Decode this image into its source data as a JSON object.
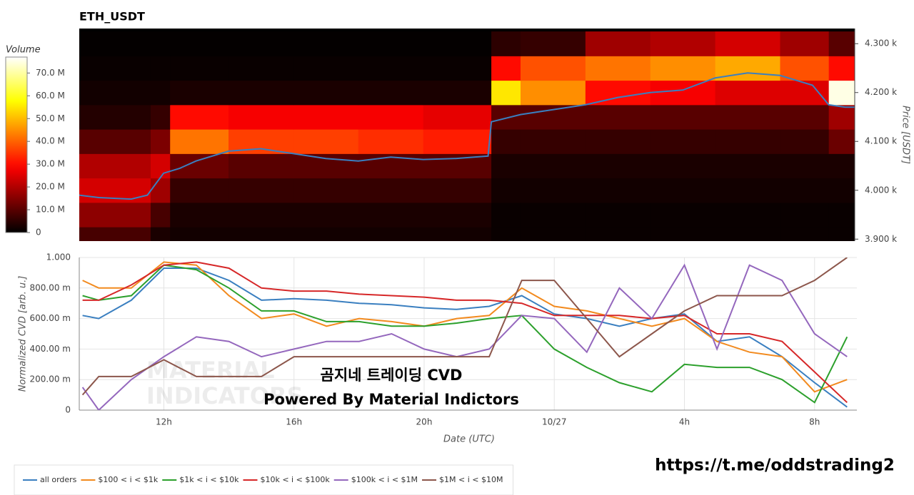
{
  "chart_data": [
    {
      "type": "heatmap",
      "title": "ETH_USDT",
      "colorbar_title": "Volume",
      "colormap": "hot",
      "clim": [
        0,
        77000000
      ],
      "cticks": [
        0,
        {
          "value": 10000000,
          "label": "10.0 M"
        },
        {
          "value": 20000000,
          "label": "20.0 M"
        },
        {
          "value": 30000000,
          "label": "30.0 M"
        },
        {
          "value": 40000000,
          "label": "40.0 M"
        },
        {
          "value": 50000000,
          "label": "50.0 M"
        },
        {
          "value": 60000000,
          "label": "60.0 M"
        },
        {
          "value": 70000000,
          "label": "70.0 M"
        }
      ],
      "xlim": [
        9.4,
        33.3
      ],
      "x_bins": [
        9.4,
        11.6,
        12.2,
        14,
        16,
        18,
        20,
        22.1,
        23,
        25,
        27,
        29,
        31,
        32.5,
        33.3
      ],
      "y_bins": [
        3875,
        3925,
        3975,
        4025,
        4075,
        4125,
        4175,
        4225,
        4275,
        4325
      ],
      "values": [
        [
          8000000,
          3000000,
          2000000,
          2000000,
          2000000,
          2000000,
          2000000,
          1000000,
          1000000,
          1000000,
          1000000,
          1000000,
          1000000,
          1000000
        ],
        [
          16000000,
          8000000,
          3000000,
          3000000,
          3000000,
          3000000,
          3000000,
          1000000,
          1000000,
          1000000,
          1000000,
          1000000,
          1000000,
          1000000
        ],
        [
          24000000,
          18000000,
          6000000,
          6000000,
          6000000,
          6000000,
          6000000,
          2000000,
          2000000,
          2000000,
          2000000,
          2000000,
          2000000,
          2000000
        ],
        [
          20000000,
          24000000,
          12000000,
          10000000,
          10000000,
          10000000,
          10000000,
          3000000,
          3000000,
          3000000,
          3000000,
          3000000,
          3000000,
          3000000
        ],
        [
          10000000,
          14000000,
          42000000,
          36000000,
          36000000,
          34000000,
          32000000,
          6000000,
          6000000,
          6000000,
          6000000,
          6000000,
          6000000,
          12000000
        ],
        [
          4000000,
          6000000,
          30000000,
          28000000,
          28000000,
          28000000,
          26000000,
          10000000,
          10000000,
          10000000,
          10000000,
          10000000,
          10000000,
          18000000
        ],
        [
          2000000,
          2000000,
          3000000,
          3000000,
          3000000,
          3000000,
          3000000,
          55000000,
          45000000,
          30000000,
          28000000,
          25000000,
          25000000,
          75000000
        ],
        [
          1000000,
          1000000,
          1000000,
          1000000,
          1000000,
          1000000,
          1000000,
          30000000,
          38000000,
          42000000,
          45000000,
          48000000,
          38000000,
          30000000
        ],
        [
          500000,
          500000,
          500000,
          500000,
          500000,
          500000,
          500000,
          5000000,
          6000000,
          18000000,
          20000000,
          24000000,
          18000000,
          10000000
        ]
      ],
      "y2lim": [
        3896,
        4331
      ],
      "y2ticks": [
        {
          "value": 3900,
          "label": "3.900 k"
        },
        {
          "value": 4000,
          "label": "4.000 k"
        },
        {
          "value": 4100,
          "label": "4.100 k"
        },
        {
          "value": 4200,
          "label": "4.200 k"
        },
        {
          "value": 4300,
          "label": "4.300 k"
        }
      ],
      "y2label": "Price [USDT]",
      "price": {
        "color": "#3a7fc0",
        "axis": "y2",
        "x": [
          9.4,
          10,
          11,
          11.5,
          12,
          12.5,
          13,
          14,
          15,
          16,
          17,
          18,
          19,
          20,
          21,
          22,
          22.1,
          23,
          24,
          25,
          26,
          27,
          28,
          29,
          30,
          31,
          32,
          32.5,
          33,
          33.3
        ],
        "values": [
          3990,
          3985,
          3982,
          3990,
          4035,
          4045,
          4060,
          4080,
          4085,
          4075,
          4065,
          4060,
          4068,
          4063,
          4065,
          4070,
          4140,
          4155,
          4165,
          4175,
          4190,
          4200,
          4205,
          4230,
          4240,
          4235,
          4215,
          4175,
          4170,
          4170
        ]
      }
    },
    {
      "type": "line",
      "xlabel": "Date (UTC)",
      "ylabel": "Normalized CVD [arb. u.]",
      "grid": true,
      "legend": "bottom-left",
      "xlim": [
        9.4,
        33.3
      ],
      "xticks": [
        {
          "value": 12,
          "label": "12h"
        },
        {
          "value": 16,
          "label": "16h"
        },
        {
          "value": 20,
          "label": "20h"
        },
        {
          "value": 24,
          "label": "10/27"
        },
        {
          "value": 28,
          "label": "4h"
        },
        {
          "value": 32,
          "label": "8h"
        }
      ],
      "ylim": [
        0,
        1
      ],
      "yticks": [
        0,
        {
          "value": 0.2,
          "label": "200.00 m"
        },
        {
          "value": 0.4,
          "label": "400.00 m"
        },
        {
          "value": 0.6,
          "label": "600.00 m"
        },
        {
          "value": 0.8,
          "label": "800.00 m"
        },
        {
          "value": 1,
          "label": "1.000"
        }
      ],
      "x": [
        9.5,
        10,
        11,
        12,
        13,
        14,
        15,
        16,
        17,
        18,
        19,
        20,
        21,
        22,
        23,
        24,
        25,
        26,
        27,
        28,
        29,
        30,
        31,
        32,
        33
      ],
      "series": [
        {
          "name": "all orders",
          "color": "#3a7fc0",
          "values": [
            0.62,
            0.6,
            0.72,
            0.93,
            0.93,
            0.85,
            0.72,
            0.73,
            0.72,
            0.7,
            0.69,
            0.67,
            0.66,
            0.68,
            0.75,
            0.63,
            0.6,
            0.55,
            0.6,
            0.63,
            0.45,
            0.48,
            0.35,
            0.18,
            0.02
          ]
        },
        {
          "name": "$100 < i < $1k",
          "color": "#f28a1e",
          "values": [
            0.85,
            0.8,
            0.8,
            0.97,
            0.95,
            0.75,
            0.6,
            0.63,
            0.55,
            0.6,
            0.58,
            0.55,
            0.6,
            0.62,
            0.8,
            0.68,
            0.65,
            0.6,
            0.55,
            0.6,
            0.45,
            0.38,
            0.35,
            0.12,
            0.2
          ]
        },
        {
          "name": "$1k < i < $10k",
          "color": "#2ca02c",
          "values": [
            0.75,
            0.72,
            0.75,
            0.95,
            0.92,
            0.8,
            0.65,
            0.65,
            0.58,
            0.58,
            0.55,
            0.55,
            0.57,
            0.6,
            0.62,
            0.4,
            0.28,
            0.18,
            0.12,
            0.3,
            0.28,
            0.28,
            0.2,
            0.05,
            0.48
          ]
        },
        {
          "name": "$10k < i < $100k",
          "color": "#d62728",
          "values": [
            0.72,
            0.72,
            0.82,
            0.95,
            0.97,
            0.93,
            0.8,
            0.78,
            0.78,
            0.76,
            0.75,
            0.74,
            0.72,
            0.72,
            0.7,
            0.62,
            0.62,
            0.62,
            0.6,
            0.62,
            0.5,
            0.5,
            0.45,
            0.25,
            0.05
          ]
        },
        {
          "name": "$100k < i < $1M",
          "color": "#9467bd",
          "values": [
            0.15,
            0.0,
            0.2,
            0.35,
            0.48,
            0.45,
            0.35,
            0.4,
            0.45,
            0.45,
            0.5,
            0.4,
            0.35,
            0.4,
            0.62,
            0.6,
            0.38,
            0.8,
            0.6,
            0.95,
            0.4,
            0.95,
            0.85,
            0.5,
            0.35
          ]
        },
        {
          "name": "$1M < i < $10M",
          "color": "#8c564b",
          "values": [
            0.1,
            0.22,
            0.22,
            0.33,
            0.22,
            0.22,
            0.22,
            0.35,
            0.35,
            0.35,
            0.35,
            0.35,
            0.35,
            0.35,
            0.85,
            0.85,
            0.6,
            0.35,
            0.5,
            0.65,
            0.75,
            0.75,
            0.75,
            0.85,
            1.0
          ]
        }
      ],
      "watermark": [
        "MATERIAL",
        "INDICATORS"
      ],
      "annotations": [
        "곰지네 트레이딩 CVD",
        "Powered By Material Indictors"
      ]
    }
  ],
  "footer_link": "https://t.me/oddstrading2"
}
